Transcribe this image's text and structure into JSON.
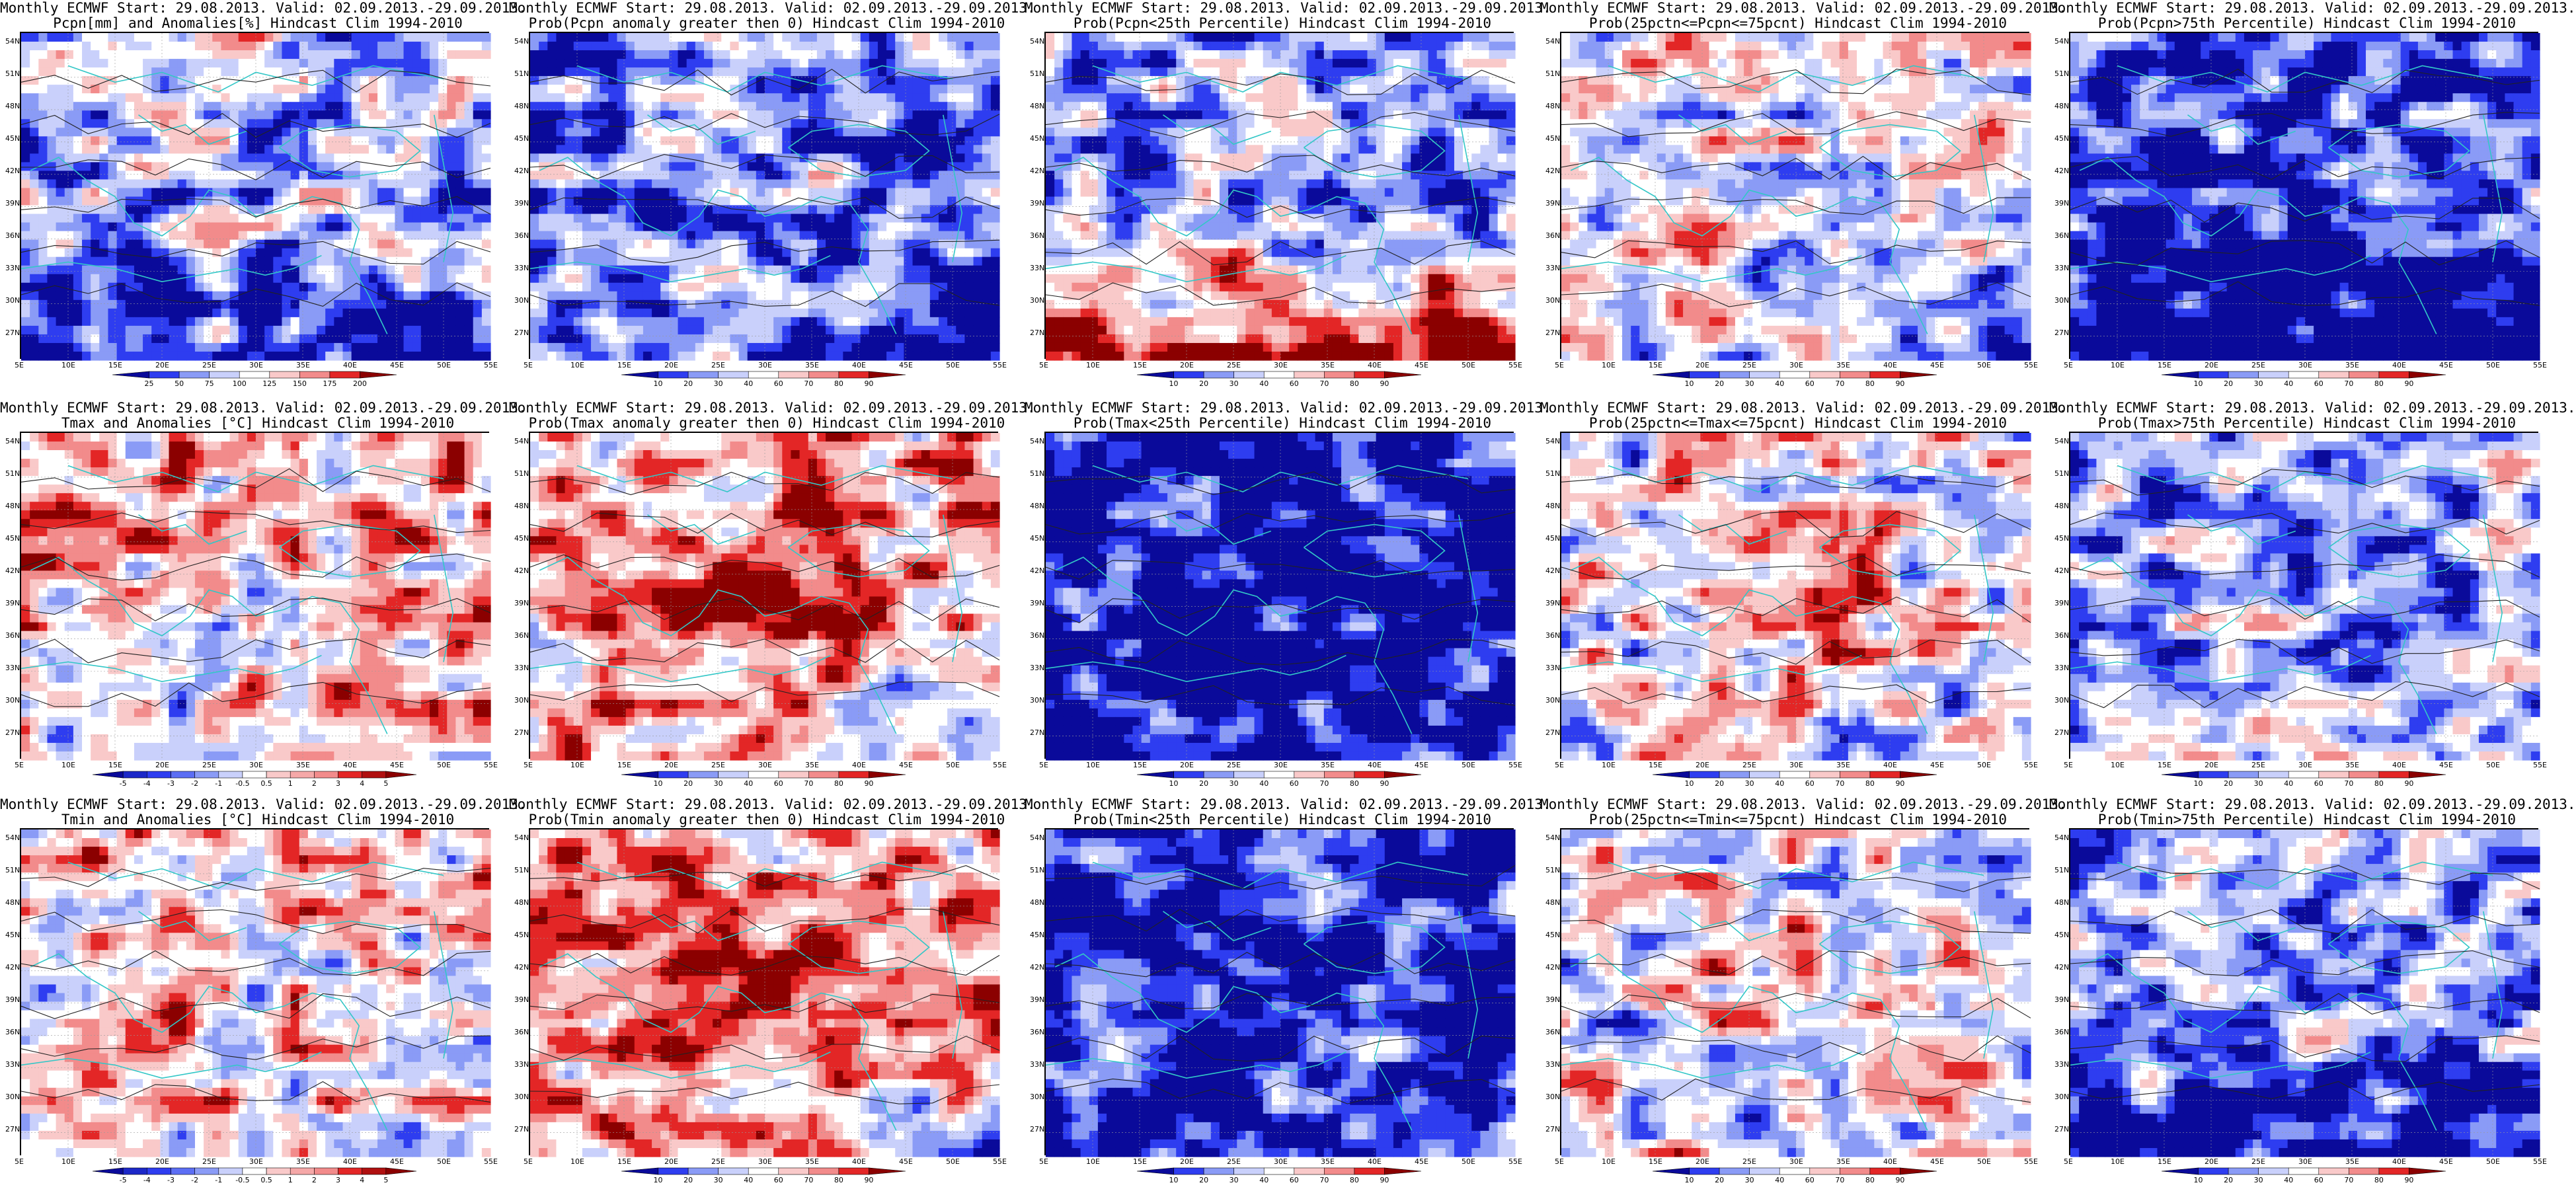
{
  "figure": {
    "rows": 3,
    "cols": 5
  },
  "colors": {
    "deep_blue": "#0a0a9a",
    "blue": "#2e3df0",
    "light_blue": "#8a9bf6",
    "pale_blue": "#c9d0fb",
    "white": "#ffffff",
    "pale_red": "#f9c9c9",
    "light_red": "#f28b8b",
    "red": "#e32626",
    "dark_red": "#8b0000",
    "coast": "#33c7c7",
    "contour": "#222222"
  },
  "chart_data": [
    {
      "type": "heatmap",
      "title_line1": "Monthly ECMWF Start: 29.08.2013. Valid: 02.09.2013.-29.09.2013.",
      "title_line2": "Pcpn[mm] and Anomalies[%] Hindcast Clim 1994-2010",
      "variable": "precipitation",
      "field": "anomaly",
      "x_ticks": [
        "5E",
        "10E",
        "15E",
        "20E",
        "25E",
        "30E",
        "35E",
        "40E",
        "45E",
        "50E",
        "55E"
      ],
      "y_ticks": [
        "54N",
        "51N",
        "48N",
        "45N",
        "42N",
        "39N",
        "36N",
        "33N",
        "30N",
        "27N"
      ],
      "colorbar": [
        "25",
        "50",
        "75",
        "100",
        "125",
        "150",
        "175",
        "200"
      ],
      "colorbar_colors": [
        "#0a0a9a",
        "#2e3df0",
        "#8a9bf6",
        "#c9d0fb",
        "#ffffff",
        "#f9c9c9",
        "#f28b8b",
        "#e32626",
        "#8b0000"
      ]
    },
    {
      "type": "heatmap",
      "title_line1": "Monthly ECMWF Start: 29.08.2013. Valid: 02.09.2013.-29.09.2013.",
      "title_line2": "Prob(Pcpn anomaly greater then 0) Hindcast Clim 1994-2010",
      "variable": "precipitation",
      "field": "prob_positive",
      "x_ticks": [
        "5E",
        "10E",
        "15E",
        "20E",
        "25E",
        "30E",
        "35E",
        "40E",
        "45E",
        "50E",
        "55E"
      ],
      "y_ticks": [
        "54N",
        "51N",
        "48N",
        "45N",
        "42N",
        "39N",
        "36N",
        "33N",
        "30N",
        "27N"
      ],
      "colorbar": [
        "10",
        "20",
        "30",
        "40",
        "60",
        "70",
        "80",
        "90"
      ],
      "colorbar_colors": [
        "#0a0a9a",
        "#2e3df0",
        "#8a9bf6",
        "#c9d0fb",
        "#ffffff",
        "#f9c9c9",
        "#f28b8b",
        "#e32626",
        "#8b0000"
      ]
    },
    {
      "type": "heatmap",
      "title_line1": "Monthly ECMWF Start: 29.08.2013. Valid: 02.09.2013.-29.09.2013.",
      "title_line2": "Prob(Pcpn<25th Percentile) Hindcast Clim 1994-2010",
      "variable": "precipitation",
      "field": "prob_below_25",
      "x_ticks": [
        "5E",
        "10E",
        "15E",
        "20E",
        "25E",
        "30E",
        "35E",
        "40E",
        "45E",
        "50E",
        "55E"
      ],
      "y_ticks": [
        "54N",
        "51N",
        "48N",
        "45N",
        "42N",
        "39N",
        "36N",
        "33N",
        "30N",
        "27N"
      ],
      "colorbar": [
        "10",
        "20",
        "30",
        "40",
        "60",
        "70",
        "80",
        "90"
      ],
      "colorbar_colors": [
        "#0a0a9a",
        "#2e3df0",
        "#8a9bf6",
        "#c9d0fb",
        "#ffffff",
        "#f9c9c9",
        "#f28b8b",
        "#e32626",
        "#8b0000"
      ]
    },
    {
      "type": "heatmap",
      "title_line1": "Monthly ECMWF Start: 29.08.2013. Valid: 02.09.2013.-29.09.2013.",
      "title_line2": "Prob(25pctn<=Pcpn<=75pcnt) Hindcast Clim 1994-2010",
      "variable": "precipitation",
      "field": "prob_middle",
      "x_ticks": [
        "5E",
        "10E",
        "15E",
        "20E",
        "25E",
        "30E",
        "35E",
        "40E",
        "45E",
        "50E",
        "55E"
      ],
      "y_ticks": [
        "54N",
        "51N",
        "48N",
        "45N",
        "42N",
        "39N",
        "36N",
        "33N",
        "30N",
        "27N"
      ],
      "colorbar": [
        "10",
        "20",
        "30",
        "40",
        "60",
        "70",
        "80",
        "90"
      ],
      "colorbar_colors": [
        "#0a0a9a",
        "#2e3df0",
        "#8a9bf6",
        "#c9d0fb",
        "#ffffff",
        "#f9c9c9",
        "#f28b8b",
        "#e32626",
        "#8b0000"
      ]
    },
    {
      "type": "heatmap",
      "title_line1": "Monthly ECMWF Start: 29.08.2013. Valid: 02.09.2013.-29.09.2013.",
      "title_line2": "Prob(Pcpn>75th Percentile) Hindcast Clim 1994-2010",
      "variable": "precipitation",
      "field": "prob_above_75",
      "x_ticks": [
        "5E",
        "10E",
        "15E",
        "20E",
        "25E",
        "30E",
        "35E",
        "40E",
        "45E",
        "50E",
        "55E"
      ],
      "y_ticks": [
        "54N",
        "51N",
        "48N",
        "45N",
        "42N",
        "39N",
        "36N",
        "33N",
        "30N",
        "27N"
      ],
      "colorbar": [
        "10",
        "20",
        "30",
        "40",
        "60",
        "70",
        "80",
        "90"
      ],
      "colorbar_colors": [
        "#0a0a9a",
        "#2e3df0",
        "#8a9bf6",
        "#c9d0fb",
        "#ffffff",
        "#f9c9c9",
        "#f28b8b",
        "#e32626",
        "#8b0000"
      ]
    },
    {
      "type": "heatmap",
      "title_line1": "Monthly ECMWF Start: 29.08.2013. Valid: 02.09.2013.-29.09.2013.",
      "title_line2": "Tmax and Anomalies [°C] Hindcast Clim 1994-2010",
      "variable": "tmax",
      "field": "anomaly",
      "x_ticks": [
        "5E",
        "10E",
        "15E",
        "20E",
        "25E",
        "30E",
        "35E",
        "40E",
        "45E",
        "50E",
        "55E"
      ],
      "y_ticks": [
        "54N",
        "51N",
        "48N",
        "45N",
        "42N",
        "39N",
        "36N",
        "33N",
        "30N",
        "27N"
      ],
      "colorbar": [
        "-5",
        "-4",
        "-3",
        "-2",
        "-1",
        "-0.5",
        "0.5",
        "1",
        "2",
        "3",
        "4",
        "5"
      ],
      "colorbar_colors": [
        "#0a0a9a",
        "#1c28c8",
        "#2e3df0",
        "#5c6ef4",
        "#8a9bf6",
        "#c9d0fb",
        "#ffffff",
        "#f9c9c9",
        "#f5a8a8",
        "#f28b8b",
        "#e32626",
        "#b01010",
        "#8b0000"
      ]
    },
    {
      "type": "heatmap",
      "title_line1": "Monthly ECMWF Start: 29.08.2013. Valid: 02.09.2013.-29.09.2013.",
      "title_line2": "Prob(Tmax anomaly greater then 0) Hindcast Clim 1994-2010",
      "variable": "tmax",
      "field": "prob_positive",
      "x_ticks": [
        "5E",
        "10E",
        "15E",
        "20E",
        "25E",
        "30E",
        "35E",
        "40E",
        "45E",
        "50E",
        "55E"
      ],
      "y_ticks": [
        "54N",
        "51N",
        "48N",
        "45N",
        "42N",
        "39N",
        "36N",
        "33N",
        "30N",
        "27N"
      ],
      "colorbar": [
        "10",
        "20",
        "30",
        "40",
        "60",
        "70",
        "80",
        "90"
      ],
      "colorbar_colors": [
        "#0a0a9a",
        "#2e3df0",
        "#8a9bf6",
        "#c9d0fb",
        "#ffffff",
        "#f9c9c9",
        "#f28b8b",
        "#e32626",
        "#8b0000"
      ]
    },
    {
      "type": "heatmap",
      "title_line1": "Monthly ECMWF Start: 29.08.2013. Valid: 02.09.2013.-29.09.2013.",
      "title_line2": "Prob(Tmax<25th Percentile) Hindcast Clim 1994-2010",
      "variable": "tmax",
      "field": "prob_below_25",
      "x_ticks": [
        "5E",
        "10E",
        "15E",
        "20E",
        "25E",
        "30E",
        "35E",
        "40E",
        "45E",
        "50E",
        "55E"
      ],
      "y_ticks": [
        "54N",
        "51N",
        "48N",
        "45N",
        "42N",
        "39N",
        "36N",
        "33N",
        "30N",
        "27N"
      ],
      "colorbar": [
        "10",
        "20",
        "30",
        "40",
        "60",
        "70",
        "80",
        "90"
      ],
      "colorbar_colors": [
        "#0a0a9a",
        "#2e3df0",
        "#8a9bf6",
        "#c9d0fb",
        "#ffffff",
        "#f9c9c9",
        "#f28b8b",
        "#e32626",
        "#8b0000"
      ]
    },
    {
      "type": "heatmap",
      "title_line1": "Monthly ECMWF Start: 29.08.2013. Valid: 02.09.2013.-29.09.2013.",
      "title_line2": "Prob(25pctn<=Tmax<=75pcnt) Hindcast Clim 1994-2010",
      "variable": "tmax",
      "field": "prob_middle",
      "x_ticks": [
        "5E",
        "10E",
        "15E",
        "20E",
        "25E",
        "30E",
        "35E",
        "40E",
        "45E",
        "50E",
        "55E"
      ],
      "y_ticks": [
        "54N",
        "51N",
        "48N",
        "45N",
        "42N",
        "39N",
        "36N",
        "33N",
        "30N",
        "27N"
      ],
      "colorbar": [
        "10",
        "20",
        "30",
        "40",
        "60",
        "70",
        "80",
        "90"
      ],
      "colorbar_colors": [
        "#0a0a9a",
        "#2e3df0",
        "#8a9bf6",
        "#c9d0fb",
        "#ffffff",
        "#f9c9c9",
        "#f28b8b",
        "#e32626",
        "#8b0000"
      ]
    },
    {
      "type": "heatmap",
      "title_line1": "Monthly ECMWF Start: 29.08.2013. Valid: 02.09.2013.-29.09.2013.",
      "title_line2": "Prob(Tmax>75th Percentile) Hindcast Clim 1994-2010",
      "variable": "tmax",
      "field": "prob_above_75",
      "x_ticks": [
        "5E",
        "10E",
        "15E",
        "20E",
        "25E",
        "30E",
        "35E",
        "40E",
        "45E",
        "50E",
        "55E"
      ],
      "y_ticks": [
        "54N",
        "51N",
        "48N",
        "45N",
        "42N",
        "39N",
        "36N",
        "33N",
        "30N",
        "27N"
      ],
      "colorbar": [
        "10",
        "20",
        "30",
        "40",
        "60",
        "70",
        "80",
        "90"
      ],
      "colorbar_colors": [
        "#0a0a9a",
        "#2e3df0",
        "#8a9bf6",
        "#c9d0fb",
        "#ffffff",
        "#f9c9c9",
        "#f28b8b",
        "#e32626",
        "#8b0000"
      ]
    },
    {
      "type": "heatmap",
      "title_line1": "Monthly ECMWF Start: 29.08.2013. Valid: 02.09.2013.-29.09.2013.",
      "title_line2": "Tmin and Anomalies [°C] Hindcast Clim 1994-2010",
      "variable": "tmin",
      "field": "anomaly",
      "x_ticks": [
        "5E",
        "10E",
        "15E",
        "20E",
        "25E",
        "30E",
        "35E",
        "40E",
        "45E",
        "50E",
        "55E"
      ],
      "y_ticks": [
        "54N",
        "51N",
        "48N",
        "45N",
        "42N",
        "39N",
        "36N",
        "33N",
        "30N",
        "27N"
      ],
      "colorbar": [
        "-5",
        "-4",
        "-3",
        "-2",
        "-1",
        "-0.5",
        "0.5",
        "1",
        "2",
        "3",
        "4",
        "5"
      ],
      "colorbar_colors": [
        "#0a0a9a",
        "#1c28c8",
        "#2e3df0",
        "#5c6ef4",
        "#8a9bf6",
        "#c9d0fb",
        "#ffffff",
        "#f9c9c9",
        "#f5a8a8",
        "#f28b8b",
        "#e32626",
        "#b01010",
        "#8b0000"
      ]
    },
    {
      "type": "heatmap",
      "title_line1": "Monthly ECMWF Start: 29.08.2013. Valid: 02.09.2013.-29.09.2013.",
      "title_line2": "Prob(Tmin anomaly greater then 0) Hindcast Clim 1994-2010",
      "variable": "tmin",
      "field": "prob_positive",
      "x_ticks": [
        "5E",
        "10E",
        "15E",
        "20E",
        "25E",
        "30E",
        "35E",
        "40E",
        "45E",
        "50E",
        "55E"
      ],
      "y_ticks": [
        "54N",
        "51N",
        "48N",
        "45N",
        "42N",
        "39N",
        "36N",
        "33N",
        "30N",
        "27N"
      ],
      "colorbar": [
        "10",
        "20",
        "30",
        "40",
        "60",
        "70",
        "80",
        "90"
      ],
      "colorbar_colors": [
        "#0a0a9a",
        "#2e3df0",
        "#8a9bf6",
        "#c9d0fb",
        "#ffffff",
        "#f9c9c9",
        "#f28b8b",
        "#e32626",
        "#8b0000"
      ]
    },
    {
      "type": "heatmap",
      "title_line1": "Monthly ECMWF Start: 29.08.2013. Valid: 02.09.2013.-29.09.2013.",
      "title_line2": "Prob(Tmin<25th Percentile) Hindcast Clim 1994-2010",
      "variable": "tmin",
      "field": "prob_below_25",
      "x_ticks": [
        "5E",
        "10E",
        "15E",
        "20E",
        "25E",
        "30E",
        "35E",
        "40E",
        "45E",
        "50E",
        "55E"
      ],
      "y_ticks": [
        "54N",
        "51N",
        "48N",
        "45N",
        "42N",
        "39N",
        "36N",
        "33N",
        "30N",
        "27N"
      ],
      "colorbar": [
        "10",
        "20",
        "30",
        "40",
        "60",
        "70",
        "80",
        "90"
      ],
      "colorbar_colors": [
        "#0a0a9a",
        "#2e3df0",
        "#8a9bf6",
        "#c9d0fb",
        "#ffffff",
        "#f9c9c9",
        "#f28b8b",
        "#e32626",
        "#8b0000"
      ]
    },
    {
      "type": "heatmap",
      "title_line1": "Monthly ECMWF Start: 29.08.2013. Valid: 02.09.2013.-29.09.2013.",
      "title_line2": "Prob(25pctn<=Tmin<=75pcnt) Hindcast Clim 1994-2010",
      "variable": "tmin",
      "field": "prob_middle",
      "x_ticks": [
        "5E",
        "10E",
        "15E",
        "20E",
        "25E",
        "30E",
        "35E",
        "40E",
        "45E",
        "50E",
        "55E"
      ],
      "y_ticks": [
        "54N",
        "51N",
        "48N",
        "45N",
        "42N",
        "39N",
        "36N",
        "33N",
        "30N",
        "27N"
      ],
      "colorbar": [
        "10",
        "20",
        "30",
        "40",
        "60",
        "70",
        "80",
        "90"
      ],
      "colorbar_colors": [
        "#0a0a9a",
        "#2e3df0",
        "#8a9bf6",
        "#c9d0fb",
        "#ffffff",
        "#f9c9c9",
        "#f28b8b",
        "#e32626",
        "#8b0000"
      ]
    },
    {
      "type": "heatmap",
      "title_line1": "Monthly ECMWF Start: 29.08.2013. Valid: 02.09.2013.-29.09.2013.",
      "title_line2": "Prob(Tmin>75th Percentile) Hindcast Clim 1994-2010",
      "variable": "tmin",
      "field": "prob_above_75",
      "x_ticks": [
        "5E",
        "10E",
        "15E",
        "20E",
        "25E",
        "30E",
        "35E",
        "40E",
        "45E",
        "50E",
        "55E"
      ],
      "y_ticks": [
        "54N",
        "51N",
        "48N",
        "45N",
        "42N",
        "39N",
        "36N",
        "33N",
        "30N",
        "27N"
      ],
      "colorbar": [
        "10",
        "20",
        "30",
        "40",
        "60",
        "70",
        "80",
        "90"
      ],
      "colorbar_colors": [
        "#0a0a9a",
        "#2e3df0",
        "#8a9bf6",
        "#c9d0fb",
        "#ffffff",
        "#f9c9c9",
        "#f28b8b",
        "#e32626",
        "#8b0000"
      ]
    }
  ]
}
